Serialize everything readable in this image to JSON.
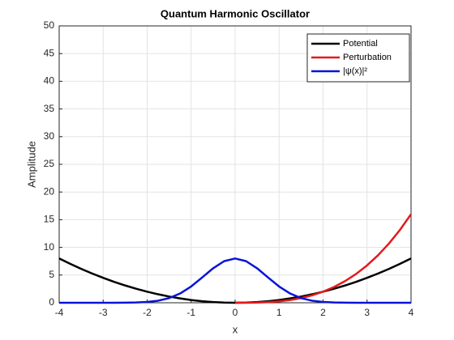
{
  "chart_data": {
    "type": "line",
    "title": "Quantum Harmonic Oscillator",
    "xlabel": "x",
    "ylabel": "Amplitude",
    "x": [
      -4,
      -3.75,
      -3.5,
      -3.25,
      -3,
      -2.75,
      -2.5,
      -2.25,
      -2,
      -1.75,
      -1.5,
      -1.25,
      -1,
      -0.75,
      -0.5,
      -0.25,
      0,
      0.25,
      0.5,
      0.75,
      1,
      1.25,
      1.5,
      1.75,
      2,
      2.25,
      2.5,
      2.75,
      3,
      3.25,
      3.5,
      3.75,
      4
    ],
    "series": [
      {
        "name": "Potential",
        "color": "#000000",
        "values": [
          8,
          7.03,
          6.125,
          5.28,
          4.5,
          3.78,
          3.125,
          2.53,
          2,
          1.53,
          1.125,
          0.78,
          0.5,
          0.28,
          0.125,
          0.03,
          0,
          0.03,
          0.125,
          0.28,
          0.5,
          0.78,
          1.125,
          1.53,
          2,
          2.53,
          3.125,
          3.78,
          4.5,
          5.28,
          6.125,
          7.03,
          8
        ]
      },
      {
        "name": "Perturbation",
        "color": "#e31a1c",
        "values": [
          null,
          null,
          null,
          null,
          null,
          null,
          null,
          null,
          null,
          null,
          null,
          null,
          null,
          null,
          null,
          null,
          0,
          0.004,
          0.03,
          0.105,
          0.25,
          0.49,
          0.84,
          1.34,
          2,
          2.85,
          3.91,
          5.2,
          6.75,
          8.58,
          10.72,
          13.18,
          16
        ]
      },
      {
        "name": "|ψ(x)|²",
        "color": "#0a14d8",
        "values": [
          0,
          0,
          0,
          0,
          0,
          0,
          0.015,
          0.05,
          0.15,
          0.37,
          0.84,
          1.68,
          2.94,
          4.56,
          6.23,
          7.51,
          8,
          7.51,
          6.23,
          4.56,
          2.94,
          1.68,
          0.84,
          0.37,
          0.15,
          0.05,
          0.015,
          0,
          0,
          0,
          0,
          0,
          0
        ]
      }
    ],
    "xlim": [
      -4,
      4
    ],
    "xticks": [
      -4,
      -3,
      -2,
      -1,
      0,
      1,
      2,
      3,
      4
    ],
    "ylim": [
      0,
      50
    ],
    "yticks": [
      0,
      5,
      10,
      15,
      20,
      25,
      30,
      35,
      40,
      45,
      50
    ],
    "grid": true,
    "legend": "top-right"
  }
}
